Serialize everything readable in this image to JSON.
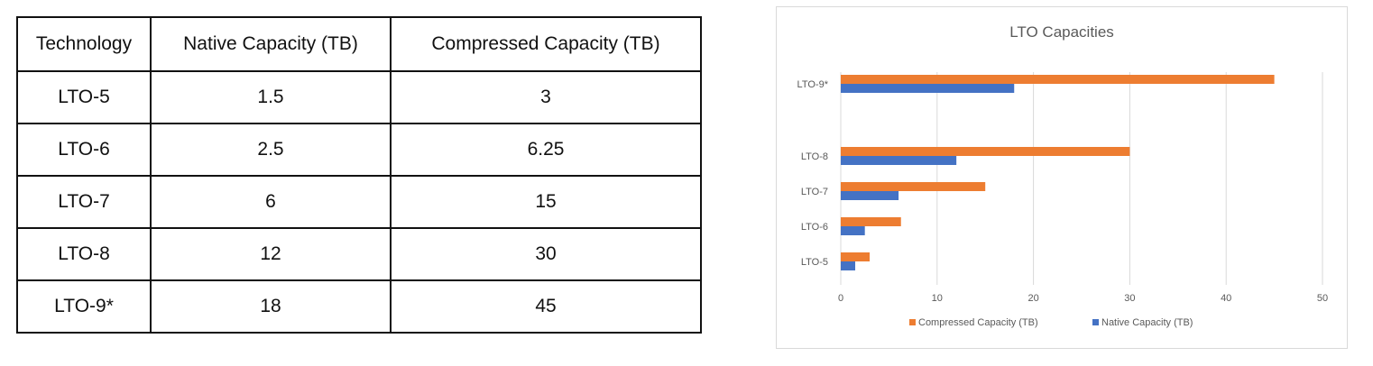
{
  "table": {
    "headers": [
      "Technology",
      "Native Capacity (TB)",
      "Compressed Capacity (TB)"
    ],
    "rows": [
      [
        "LTO-5",
        "1.5",
        "3"
      ],
      [
        "LTO-6",
        "2.5",
        "6.25"
      ],
      [
        "LTO-7",
        "6",
        "15"
      ],
      [
        "LTO-8",
        "12",
        "30"
      ],
      [
        "LTO-9*",
        "18",
        "45"
      ]
    ]
  },
  "chart_data": {
    "type": "bar",
    "orientation": "horizontal",
    "title": "LTO Capacities",
    "categories": [
      "LTO-5",
      "LTO-6",
      "LTO-7",
      "LTO-8",
      "LTO-9*"
    ],
    "series": [
      {
        "name": "Compressed Capacity (TB)",
        "values": [
          3,
          6.25,
          15,
          30,
          45
        ],
        "color": "#ed7d31"
      },
      {
        "name": "Native Capacity (TB)",
        "values": [
          1.5,
          2.5,
          6,
          12,
          18
        ],
        "color": "#4472c4"
      }
    ],
    "xlim": [
      0,
      50
    ],
    "xticks": [
      0,
      10,
      20,
      30,
      40,
      50
    ],
    "grid": "vertical",
    "legend_position": "bottom"
  }
}
